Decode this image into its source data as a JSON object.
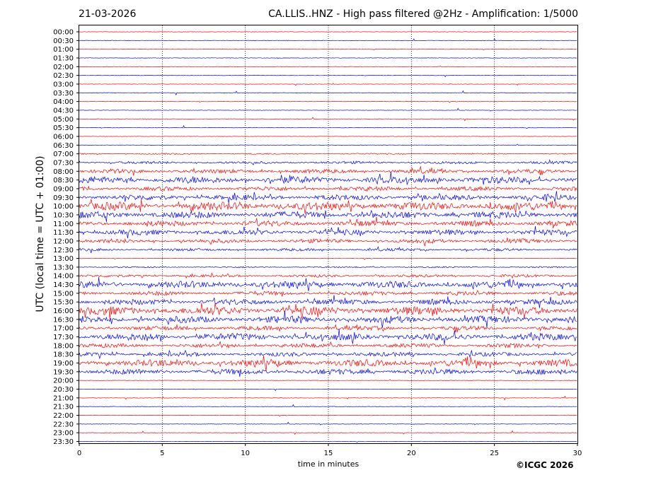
{
  "header": {
    "date": "21-03-2026",
    "title": "CA.LLIS..HNZ - High pass filtered @2Hz - Amplification: 1/5000"
  },
  "credit": "©ICGC 2026",
  "chart_data": {
    "type": "line",
    "title": "CA.LLIS..HNZ - High pass filtered @2Hz - Amplification: 1/5000",
    "xlabel": "time in minutes",
    "ylabel": "UTC (local time = UTC + 01:00)",
    "xlim": [
      0,
      30
    ],
    "x_ticks": [
      "0",
      "5",
      "10",
      "15",
      "20",
      "25",
      "30"
    ],
    "y_ticks": [
      "00:00",
      "00:30",
      "01:00",
      "01:30",
      "02:00",
      "02:30",
      "03:00",
      "03:30",
      "04:00",
      "04:30",
      "05:00",
      "05:30",
      "06:00",
      "06:30",
      "07:00",
      "07:30",
      "08:00",
      "08:30",
      "09:00",
      "09:30",
      "10:00",
      "10:30",
      "11:00",
      "11:30",
      "12:00",
      "12:30",
      "13:00",
      "13:30",
      "14:00",
      "14:30",
      "15:00",
      "15:30",
      "16:00",
      "16:30",
      "17:00",
      "17:30",
      "18:00",
      "18:30",
      "19:00",
      "19:30",
      "20:00",
      "20:30",
      "21:00",
      "21:30",
      "22:00",
      "22:30",
      "23:00",
      "23:30"
    ],
    "series_colors": [
      "#ff0000",
      "#0000ff"
    ],
    "grid": "vertical dotted lines at 5-minute intervals",
    "trace_activity": [
      0,
      0,
      0,
      0,
      0,
      0,
      0,
      0,
      0,
      0,
      0,
      0,
      0,
      0,
      1,
      2,
      3,
      5,
      3,
      4,
      6,
      5,
      4,
      4,
      3,
      2,
      0,
      1,
      2,
      5,
      3,
      4,
      6,
      5,
      3,
      5,
      3,
      3,
      5,
      4,
      0,
      0,
      0,
      0,
      0,
      0,
      0,
      0
    ]
  }
}
